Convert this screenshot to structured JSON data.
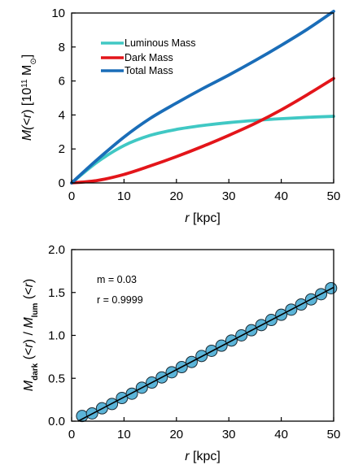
{
  "chart_data": [
    {
      "type": "line",
      "xlabel": {
        "var": "r",
        "unit": " [kpc]"
      },
      "ylabel": {
        "pre": "M(<",
        "var": "r",
        "mid": ") [10",
        "exp": "11",
        "post": " M",
        "sun": "⊙",
        "close": "]"
      },
      "xlim": [
        0,
        50
      ],
      "ylim": [
        0,
        10
      ],
      "xticks": [
        "0",
        "10",
        "20",
        "30",
        "40",
        "50"
      ],
      "yticks": [
        "0",
        "2",
        "4",
        "6",
        "8",
        "10"
      ],
      "legend_position": "top-left",
      "x": [
        0,
        5,
        10,
        15,
        20,
        25,
        30,
        35,
        40,
        45,
        50
      ],
      "series": [
        {
          "name": "Luminous Mass",
          "color": "#40c8c4",
          "values": [
            0,
            1.25,
            2.2,
            2.8,
            3.15,
            3.38,
            3.55,
            3.68,
            3.78,
            3.86,
            3.92
          ]
        },
        {
          "name": "Dark Mass",
          "color": "#e3151a",
          "values": [
            0,
            0.15,
            0.5,
            1.0,
            1.55,
            2.15,
            2.8,
            3.5,
            4.3,
            5.2,
            6.15
          ]
        },
        {
          "name": "Total Mass",
          "color": "#1a6db8",
          "values": [
            0,
            1.4,
            2.7,
            3.8,
            4.7,
            5.55,
            6.35,
            7.2,
            8.1,
            9.05,
            10.1
          ]
        }
      ]
    },
    {
      "type": "scatter",
      "xlabel": {
        "var": "r",
        "unit": " [kpc]"
      },
      "ylabel": {
        "m1": "M",
        "s1": "dark",
        "t1": " (<",
        "v1": "r",
        "t2": ") / ",
        "m2": "M",
        "s2": "lum",
        "t3": " (<",
        "v2": "r",
        "t4": ")"
      },
      "xlim": [
        0,
        50
      ],
      "ylim": [
        0,
        2
      ],
      "xticks": [
        "0",
        "10",
        "20",
        "30",
        "40",
        "50"
      ],
      "yticks": [
        "0.0",
        "0.5",
        "1.0",
        "1.5",
        "2.0"
      ],
      "annotations": [
        "m = 0.03",
        "r = 0.9999"
      ],
      "marker_color": "#5bb4d8",
      "fit_line": {
        "slope": 0.032,
        "intercept": -0.04,
        "x_range": [
          0,
          50
        ]
      },
      "x": [
        2,
        3.9,
        5.8,
        7.7,
        9.6,
        11.5,
        13.4,
        15.3,
        17.2,
        19.1,
        21,
        22.9,
        24.8,
        26.7,
        28.6,
        30.5,
        32.4,
        34.3,
        36.2,
        38.1,
        40,
        41.9,
        43.8,
        45.7,
        47.6,
        49.5
      ],
      "y": [
        0.06,
        0.09,
        0.15,
        0.2,
        0.27,
        0.32,
        0.39,
        0.45,
        0.51,
        0.57,
        0.63,
        0.69,
        0.76,
        0.82,
        0.88,
        0.94,
        1.0,
        1.06,
        1.12,
        1.18,
        1.24,
        1.3,
        1.36,
        1.42,
        1.48,
        1.55
      ]
    }
  ]
}
